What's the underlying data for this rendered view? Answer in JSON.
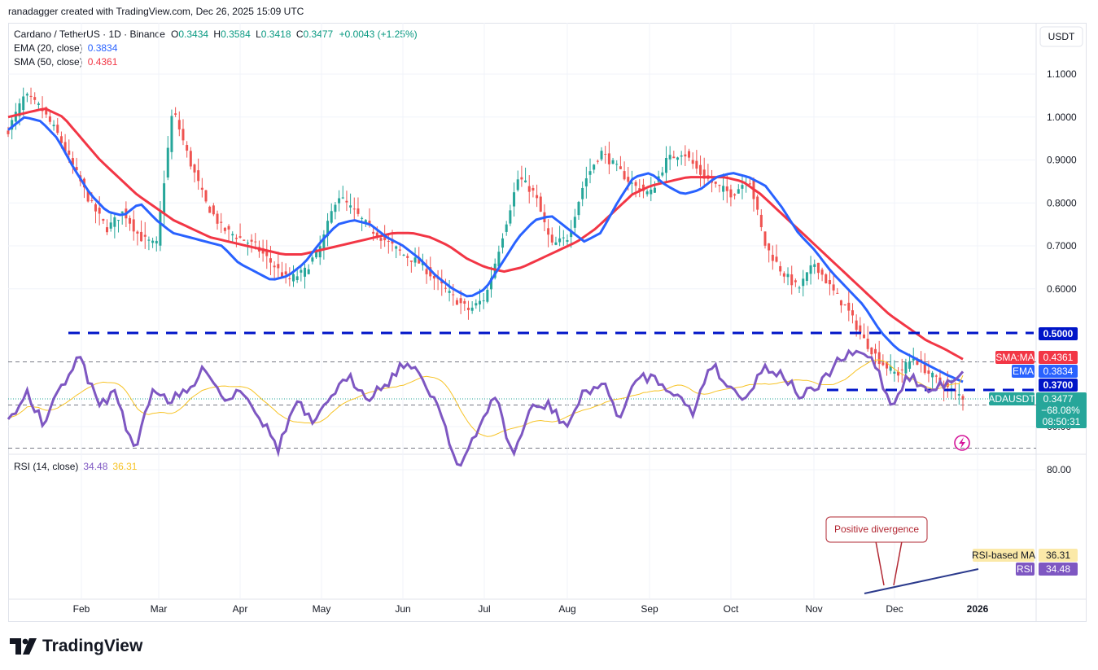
{
  "header": {
    "text": "ranadagger created with TradingView.com, Dec 26, 2025 15:09 UTC"
  },
  "legend": {
    "symbol": "Cardano / TetherUS · 1D · Binance",
    "o_label": "O",
    "o_val": "0.3434",
    "h_label": "H",
    "h_val": "0.3584",
    "l_label": "L",
    "l_val": "0.3418",
    "c_label": "C",
    "c_val": "0.3477",
    "change": "+0.0043 (+1.25%)",
    "ema_label": "EMA (20, close)",
    "ema_val": "0.3834",
    "sma_label": "SMA (50, close)",
    "sma_val": "0.4361"
  },
  "currency": "USDT",
  "badges": {
    "level_050": "0.5000",
    "sma_tag": "SMA:MA",
    "sma_val": "0.4361",
    "ema_tag": "EMA",
    "ema_val": "0.3834",
    "level_037": "0.3700",
    "sym_tag": "ADAUSDT",
    "price": "0.3477",
    "pct": "−68.08%",
    "timer": "08:50:31"
  },
  "rsi": {
    "label": "RSI (14, close)",
    "val": "34.48",
    "ma_val": "36.31",
    "ma_tag": "RSI-based MA",
    "rsi_tag": "RSI",
    "annotation": "Positive divergence"
  },
  "brand": {
    "name": "TradingView"
  },
  "colors": {
    "up": "#26a69a",
    "down": "#ef5350",
    "ema": "#2962ff",
    "sma": "#f23645",
    "rsi": "#7e57c2",
    "rsi_ma": "#f7c325",
    "level": "#0015c8",
    "annot": "#b22833",
    "trend": "#2b3a8c"
  },
  "chart_data": [
    {
      "type": "candlestick",
      "title": "Cardano / TetherUS · 1D · Binance",
      "x_ticks": [
        "Feb",
        "Mar",
        "Apr",
        "May",
        "Jun",
        "Jul",
        "Aug",
        "Sep",
        "Oct",
        "Nov",
        "Dec",
        "2026"
      ],
      "y_ticks": [
        "1.1000",
        "1.0000",
        "0.9000",
        "0.8000",
        "0.7000",
        "0.6000"
      ],
      "ylim": [
        0.22,
        1.2
      ],
      "series": [
        {
          "name": "EMA (20, close)",
          "last": 0.3834,
          "approx_close_path": [
            0.97,
            1.0,
            0.99,
            0.95,
            0.88,
            0.82,
            0.78,
            0.77,
            0.8,
            0.76,
            0.73,
            0.72,
            0.71,
            0.7,
            0.66,
            0.64,
            0.62,
            0.63,
            0.66,
            0.71,
            0.75,
            0.76,
            0.75,
            0.72,
            0.7,
            0.67,
            0.63,
            0.6,
            0.58,
            0.6,
            0.66,
            0.72,
            0.76,
            0.77,
            0.74,
            0.71,
            0.73,
            0.8,
            0.86,
            0.87,
            0.84,
            0.82,
            0.83,
            0.86,
            0.87,
            0.86,
            0.84,
            0.79,
            0.73,
            0.69,
            0.64,
            0.6,
            0.56,
            0.5,
            0.46,
            0.44,
            0.42,
            0.4,
            0.3834
          ]
        },
        {
          "name": "SMA (50, close)",
          "last": 0.4361,
          "approx_close_path": [
            1.0,
            1.01,
            1.02,
            1.0,
            0.95,
            0.9,
            0.86,
            0.82,
            0.79,
            0.76,
            0.74,
            0.72,
            0.71,
            0.7,
            0.69,
            0.68,
            0.68,
            0.69,
            0.7,
            0.71,
            0.72,
            0.73,
            0.73,
            0.72,
            0.7,
            0.67,
            0.65,
            0.64,
            0.65,
            0.67,
            0.69,
            0.71,
            0.74,
            0.78,
            0.82,
            0.84,
            0.85,
            0.86,
            0.86,
            0.86,
            0.85,
            0.82,
            0.78,
            0.74,
            0.7,
            0.66,
            0.62,
            0.58,
            0.54,
            0.51,
            0.48,
            0.46,
            0.4361
          ]
        }
      ],
      "horizontal_levels": [
        0.5,
        0.37
      ],
      "last_price": 0.3477,
      "change_pct": -68.08
    },
    {
      "type": "line",
      "title": "RSI (14, close)",
      "y_ticks": [
        "80.00",
        "60.00"
      ],
      "ylim": [
        20,
        85
      ],
      "bands": [
        30,
        70
      ],
      "series": [
        {
          "name": "RSI",
          "last": 34.48
        },
        {
          "name": "RSI-based MA",
          "last": 36.31
        }
      ],
      "annotations": [
        "Positive divergence"
      ]
    }
  ]
}
